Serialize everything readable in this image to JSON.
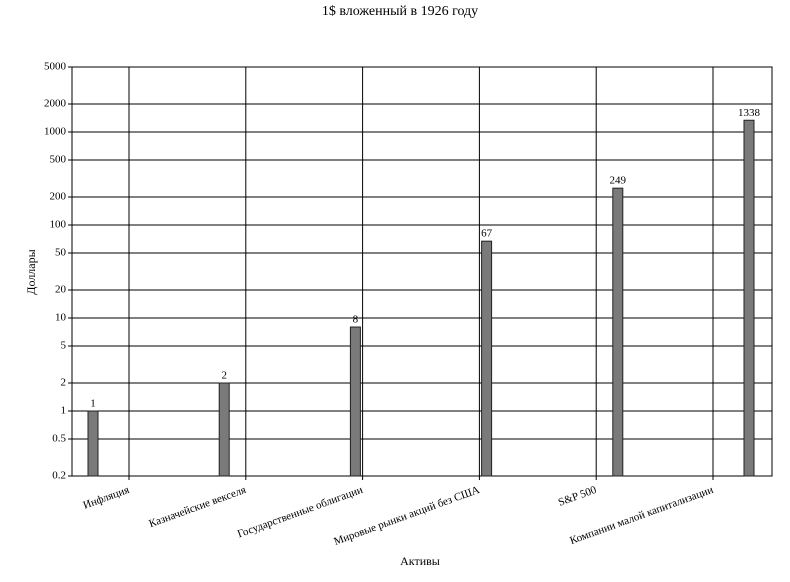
{
  "chart_data": {
    "type": "bar",
    "title": "1$ вложенный в 1926 году",
    "x_label": "Активы",
    "y_label": "Доллары",
    "categories": [
      "Инфляция",
      "Казначейские векселя",
      "Государственные облигации",
      "Мировые рынки акций без США",
      "S&P 500",
      "Компании малой капитализации"
    ],
    "values": [
      1,
      2,
      8,
      67,
      249,
      1338
    ],
    "color": "#7a7a7a",
    "ylim": [
      0.2,
      5000
    ],
    "yticks": [
      0.2,
      0.5,
      1,
      2,
      5,
      10,
      20,
      50,
      100,
      200,
      500,
      1000,
      2000,
      5000
    ],
    "log_scale": true,
    "grid": true
  }
}
